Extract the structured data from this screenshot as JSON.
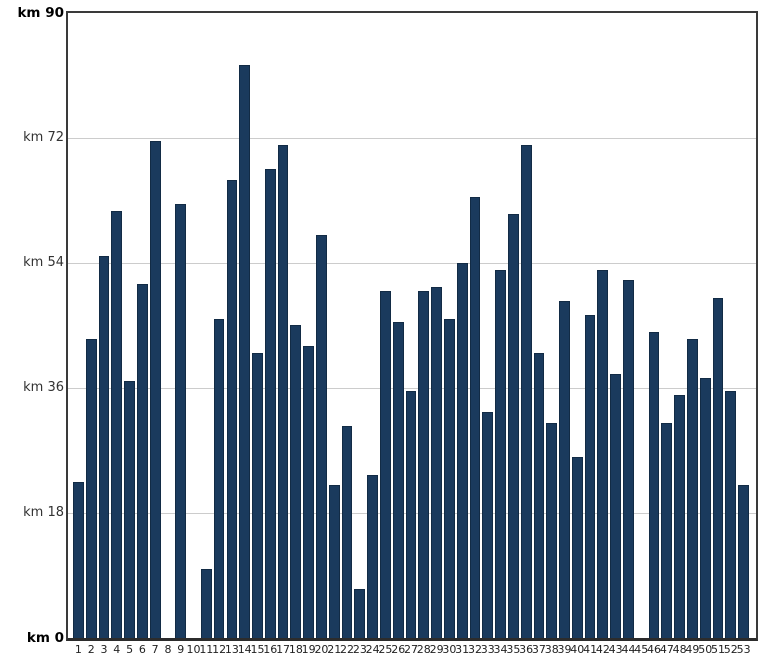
{
  "chart_data": {
    "type": "bar",
    "title": "",
    "xlabel": "",
    "ylabel": "km",
    "unit": "km",
    "ylim": [
      0,
      90
    ],
    "y_tick_step": 18,
    "y_ticks": [
      {
        "value": 0,
        "label": "km 0",
        "bold": true
      },
      {
        "value": 18,
        "label": "km 18",
        "bold": false
      },
      {
        "value": 36,
        "label": "km 36",
        "bold": false
      },
      {
        "value": 54,
        "label": "km 54",
        "bold": false
      },
      {
        "value": 72,
        "label": "km 72",
        "bold": false
      },
      {
        "value": 90,
        "label": "km 90",
        "bold": true
      }
    ],
    "grid": "horizontal",
    "legend": "none",
    "categories": [
      "1",
      "2",
      "3",
      "4",
      "5",
      "6",
      "7",
      "8",
      "9",
      "10",
      "11",
      "12",
      "13",
      "14",
      "15",
      "16",
      "17",
      "18",
      "19",
      "20",
      "21",
      "22",
      "23",
      "24",
      "25",
      "26",
      "27",
      "28",
      "29",
      "30",
      "31",
      "32",
      "33",
      "34",
      "35",
      "36",
      "37",
      "38",
      "39",
      "40",
      "41",
      "42",
      "43",
      "44",
      "45",
      "46",
      "47",
      "48",
      "49",
      "50",
      "51",
      "52",
      "53"
    ],
    "values": [
      22.5,
      43,
      55,
      61.5,
      37,
      51,
      71.5,
      0,
      62.5,
      0,
      10,
      46,
      66,
      82.5,
      41,
      67.5,
      71,
      45,
      42,
      58,
      22,
      30.5,
      7,
      23.5,
      50,
      45.5,
      35.5,
      50,
      50.5,
      46,
      54,
      63.5,
      32.5,
      53,
      61,
      71,
      41,
      31,
      48.5,
      26,
      46.5,
      53,
      38,
      51.5,
      0,
      44,
      31,
      35,
      43,
      37.5,
      49,
      35.5,
      22
    ],
    "colors": {
      "bar_fill": "#1a3a5d",
      "bar_border": "#122b45",
      "gridline": "#cccccc",
      "frame": "#3a3a3a",
      "axis_text": "#222222",
      "background": "#ffffff"
    }
  }
}
